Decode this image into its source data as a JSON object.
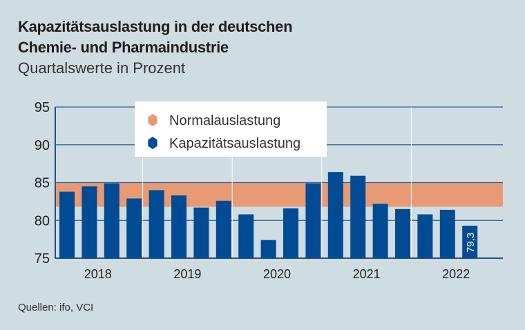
{
  "title_line1": "Kapazitätsauslastung in der deutschen",
  "title_line2": "Chemie- und Pharmaindustrie",
  "subtitle": "Quartalswerte in Prozent",
  "source": "Quellen: ifo, VCI",
  "chart_data": {
    "type": "bar",
    "ylim": [
      75,
      95
    ],
    "yticks": [
      "75",
      "80",
      "85",
      "90",
      "95"
    ],
    "years": [
      "2018",
      "2019",
      "2020",
      "2021",
      "2022"
    ],
    "categories": [
      "2018 Q1",
      "2018 Q2",
      "2018 Q3",
      "2018 Q4",
      "2019 Q1",
      "2019 Q2",
      "2019 Q3",
      "2019 Q4",
      "2020 Q1",
      "2020 Q2",
      "2020 Q3",
      "2020 Q4",
      "2021 Q1",
      "2021 Q2",
      "2021 Q3",
      "2021 Q4",
      "2022 Q1",
      "2022 Q2",
      "2022 Q3"
    ],
    "series": [
      {
        "name": "Kapazitätsauslastung",
        "color": "#004b93",
        "values": [
          83.8,
          84.5,
          84.9,
          82.9,
          84.0,
          83.3,
          81.7,
          82.6,
          80.8,
          77.4,
          81.6,
          84.9,
          86.4,
          85.9,
          82.2,
          81.5,
          80.8,
          81.4,
          79.3
        ]
      }
    ],
    "band": {
      "name": "Normalauslastung",
      "color": "#e89a74",
      "range": [
        81.8,
        85.0
      ]
    },
    "data_label": "79,3",
    "legend_placement": "top-left",
    "grid": true
  }
}
